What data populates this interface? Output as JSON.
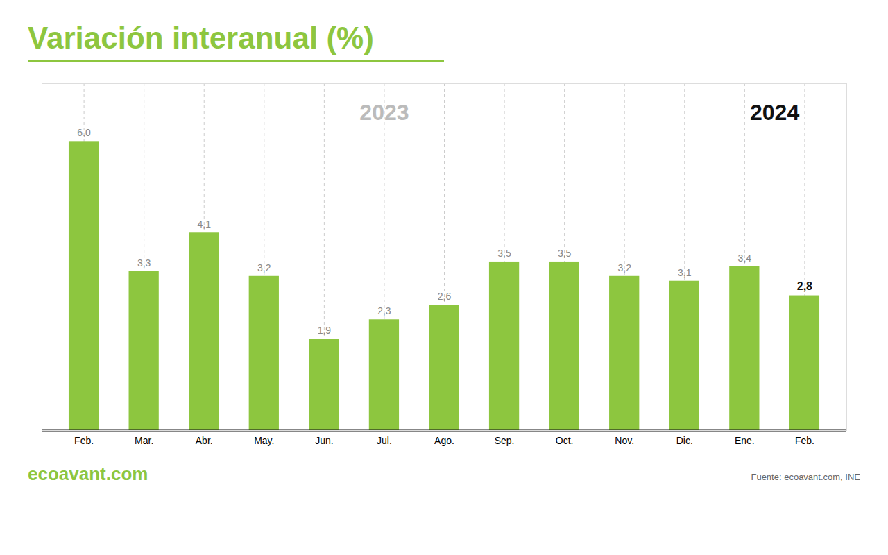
{
  "chart_data": {
    "type": "bar",
    "title": "Variación interanual (%)",
    "categories": [
      "Feb.",
      "Mar.",
      "Abr.",
      "May.",
      "Jun.",
      "Jul.",
      "Ago.",
      "Sep.",
      "Oct.",
      "Nov.",
      "Dic.",
      "Ene.",
      "Feb."
    ],
    "values": [
      6.0,
      3.3,
      4.1,
      3.2,
      1.9,
      2.3,
      2.6,
      3.5,
      3.5,
      3.2,
      3.1,
      3.4,
      2.8
    ],
    "value_labels": [
      "6,0",
      "3,3",
      "4,1",
      "3,2",
      "1,9",
      "2,3",
      "2,6",
      "3,5",
      "3,5",
      "3,2",
      "3,1",
      "3,4",
      "2,8"
    ],
    "color": "#8DC63F",
    "ylim": [
      0,
      7.2
    ],
    "grid": true,
    "data_labels": true,
    "tick_labels": "x",
    "annotations": [
      "2023",
      "2024",
      "ecoavant.com"
    ],
    "caption": "Fuente: ecoavant.com, INE"
  }
}
